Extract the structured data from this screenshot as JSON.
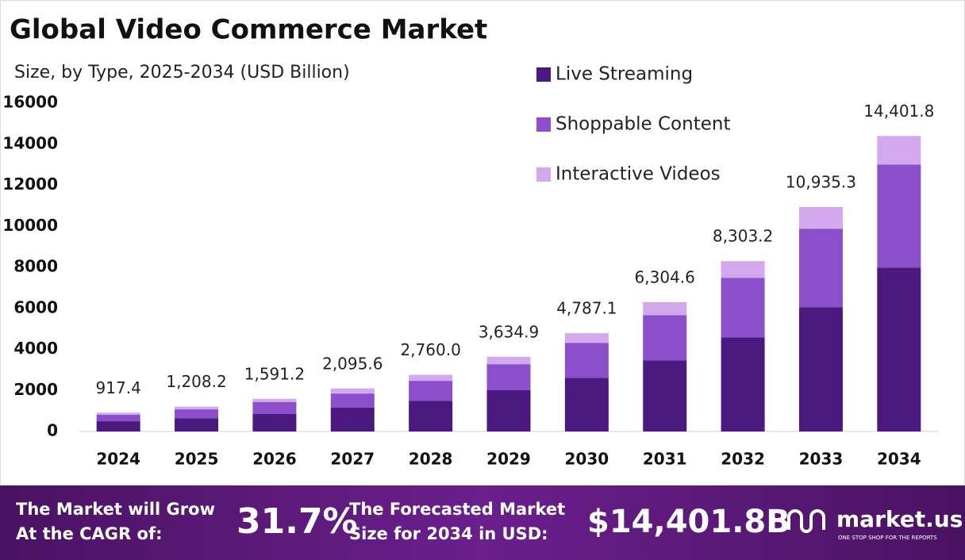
{
  "chart_data": {
    "type": "stacked-bar",
    "title": "Global Video Commerce Market",
    "subtitle": "Size, by Type, 2025-2034 (USD Billion)",
    "categories": [
      "2024",
      "2025",
      "2026",
      "2027",
      "2028",
      "2029",
      "2030",
      "2031",
      "2032",
      "2033",
      "2034"
    ],
    "series": [
      {
        "name": "Live Streaming",
        "color": "#4b1880",
        "values": [
          500,
          650,
          850,
          1160,
          1500,
          2010,
          2620,
          3470,
          4590,
          6060,
          7990
        ]
      },
      {
        "name": "Shoppable Content",
        "color": "#8c4fcc",
        "values": [
          320,
          430,
          580,
          690,
          970,
          1270,
          1700,
          2200,
          2900,
          3820,
          5020
        ]
      },
      {
        "name": "Interactive Videos",
        "color": "#d3a8ec",
        "values": [
          97,
          130,
          160,
          250,
          290,
          360,
          470,
          630,
          810,
          1055,
          1390
        ]
      }
    ],
    "totals": [
      917.4,
      1208.2,
      1591.2,
      2095.6,
      2760.0,
      3634.9,
      4787.1,
      6304.6,
      8303.2,
      10935.3,
      14401.8
    ],
    "total_labels": [
      "917.4",
      "1,208.2",
      "1,591.2",
      "2,095.6",
      "2,760.0",
      "3,634.9",
      "4,787.1",
      "6,304.6",
      "8,303.2",
      "10,935.3",
      "14,401.8"
    ],
    "ylim": [
      0,
      16000
    ],
    "yticks": [
      0,
      2000,
      4000,
      6000,
      8000,
      10000,
      12000,
      14000,
      16000
    ],
    "grid": false,
    "legend": "top-right"
  },
  "footer": {
    "cagr_text": [
      "The Market will Grow",
      "At the CAGR of:"
    ],
    "cagr_value": "31.7%",
    "forecast_text": [
      "The Forecasted Market",
      "Size for 2034 in USD:"
    ],
    "forecast_value": "$14,401.8B",
    "brand": "market.us",
    "tagline": "ONE STOP SHOP FOR THE REPORTS"
  }
}
